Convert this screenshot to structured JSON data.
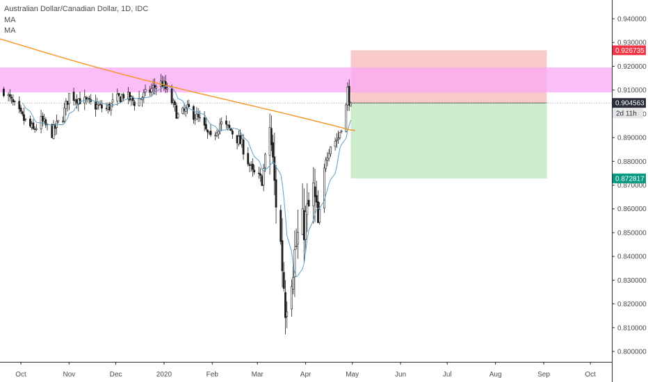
{
  "header": {
    "symbol": "Australian Dollar/Canadian Dollar, 1D, IDC",
    "indicators": [
      "MA",
      "MA"
    ]
  },
  "chart_data": {
    "type": "candlestick",
    "symbol": "Australian Dollar/Canadian Dollar",
    "interval": "1D",
    "source": "IDC",
    "x_tick_labels": [
      "Oct",
      "Nov",
      "Dec",
      "2020",
      "Feb",
      "Mar",
      "Apr",
      "May",
      "Jun",
      "Jul",
      "Aug",
      "Sep",
      "Oct"
    ],
    "y_tick_labels": [
      "0.940000",
      "0.930000",
      "0.920000",
      "0.910000",
      "0.900000",
      "0.890000",
      "0.880000",
      "0.870000",
      "0.860000",
      "0.850000",
      "0.840000",
      "0.830000",
      "0.820000",
      "0.810000",
      "0.800000"
    ],
    "y_ticks": [
      0.94,
      0.93,
      0.92,
      0.91,
      0.9,
      0.89,
      0.88,
      0.87,
      0.86,
      0.85,
      0.84,
      0.83,
      0.82,
      0.81,
      0.8
    ],
    "ylim": [
      0.795,
      0.945
    ],
    "price_labels": {
      "target": {
        "text": "0.926735",
        "value": 0.926735,
        "color": "#f23645"
      },
      "last": {
        "text": "0.904563",
        "value": 0.904563,
        "color": "#2a2e39"
      },
      "countdown": {
        "text": "2d 11h"
      },
      "stop": {
        "text": "0.872817",
        "value": 0.872817,
        "color": "#089981"
      }
    },
    "resistance_zone": {
      "from": 0.909,
      "to": 0.9195,
      "color": "#f9a8f5"
    },
    "position": {
      "type": "short",
      "entry": 0.904563,
      "target": 0.926735,
      "stop": 0.872817,
      "start_date": "2020-04-30",
      "end_date": "2020-09-03",
      "upper_color": "#f7b5b7",
      "lower_color": "#c8ebc9"
    },
    "candle_color": "#1c1c1c",
    "ma_colors": {
      "fast": "#5e9ec4",
      "slow": "#f7931e"
    },
    "keypoints_close": [
      [
        "2019-09-20",
        0.91
      ],
      [
        "2019-10-01",
        0.899
      ],
      [
        "2019-10-09",
        0.893
      ],
      [
        "2019-10-14",
        0.897
      ],
      [
        "2019-10-21",
        0.892
      ],
      [
        "2019-10-28",
        0.899
      ],
      [
        "2019-11-01",
        0.908
      ],
      [
        "2019-11-08",
        0.906
      ],
      [
        "2019-11-15",
        0.904
      ],
      [
        "2019-11-25",
        0.902
      ],
      [
        "2019-12-02",
        0.906
      ],
      [
        "2019-12-06",
        0.908
      ],
      [
        "2019-12-13",
        0.905
      ],
      [
        "2019-12-20",
        0.908
      ],
      [
        "2019-12-27",
        0.912
      ],
      [
        "2019-12-31",
        0.913
      ],
      [
        "2020-01-06",
        0.905
      ],
      [
        "2020-01-10",
        0.899
      ],
      [
        "2020-01-17",
        0.902
      ],
      [
        "2020-01-24",
        0.897
      ],
      [
        "2020-01-31",
        0.889
      ],
      [
        "2020-02-06",
        0.896
      ],
      [
        "2020-02-13",
        0.893
      ],
      [
        "2020-02-20",
        0.887
      ],
      [
        "2020-02-27",
        0.875
      ],
      [
        "2020-03-04",
        0.872
      ],
      [
        "2020-03-09",
        0.895
      ],
      [
        "2020-03-12",
        0.87
      ],
      [
        "2020-03-16",
        0.845
      ],
      [
        "2020-03-19",
        0.82
      ],
      [
        "2020-03-23",
        0.834
      ],
      [
        "2020-03-27",
        0.848
      ],
      [
        "2020-04-01",
        0.855
      ],
      [
        "2020-04-06",
        0.867
      ],
      [
        "2020-04-09",
        0.852
      ],
      [
        "2020-04-14",
        0.882
      ],
      [
        "2020-04-17",
        0.887
      ],
      [
        "2020-04-22",
        0.89
      ],
      [
        "2020-04-27",
        0.903
      ],
      [
        "2020-04-28",
        0.91
      ],
      [
        "2020-04-29",
        0.906
      ],
      [
        "2020-04-30",
        0.904563
      ]
    ]
  }
}
